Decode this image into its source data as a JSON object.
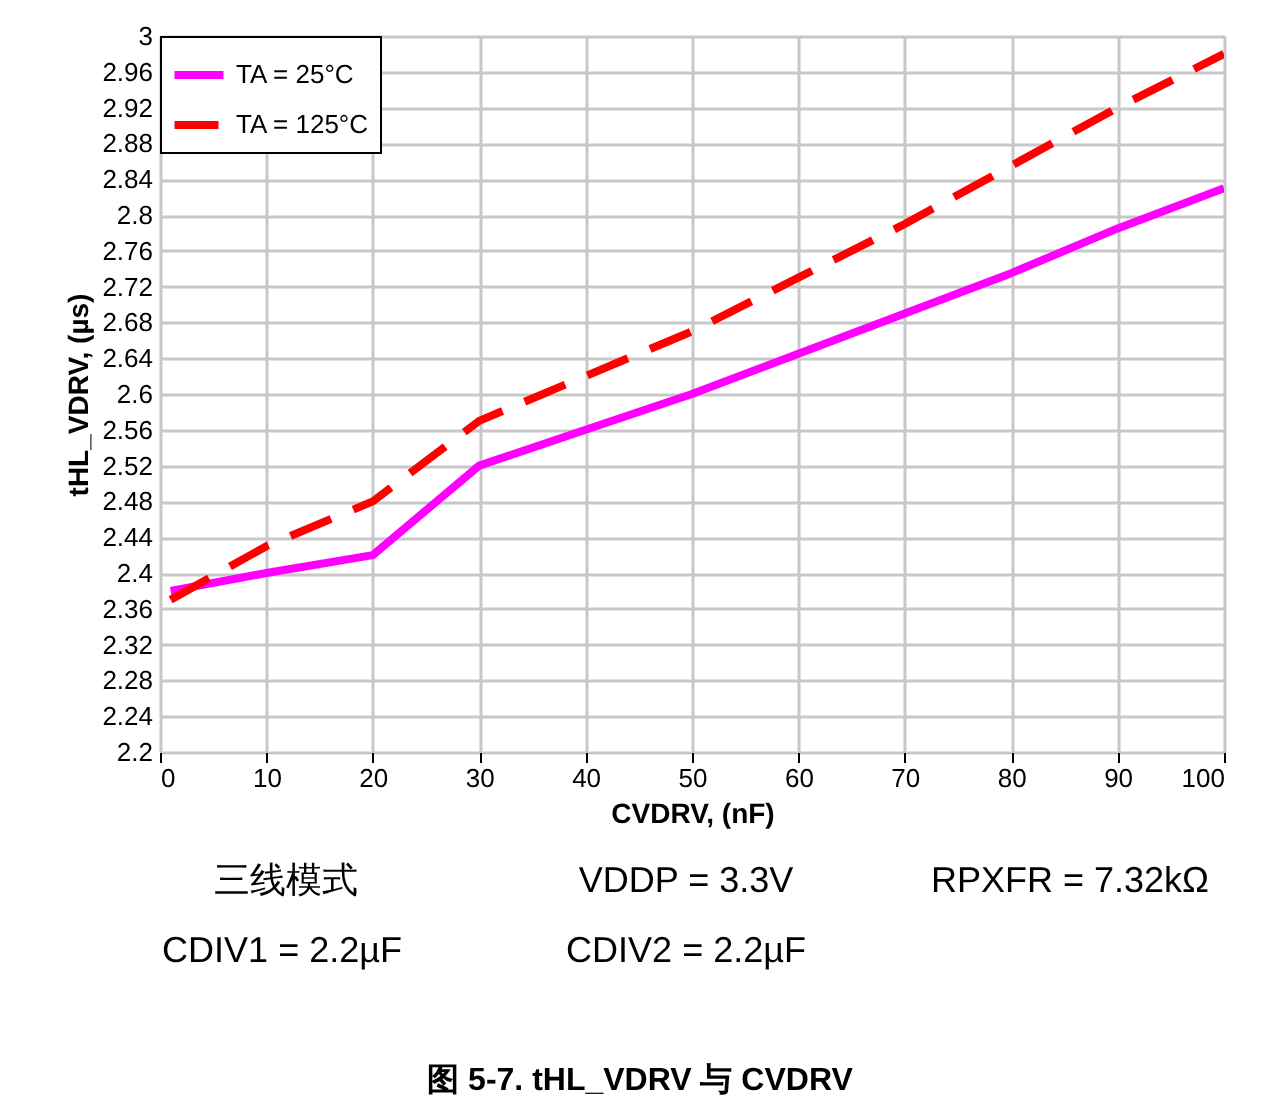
{
  "chart_data": {
    "type": "line",
    "title": "图 5-7. tHL_VDRV 与 CVDRV",
    "xlabel": "CVDRV, (nF)",
    "ylabel": "tHL_VDRV, (µs)",
    "x": [
      1,
      10,
      20,
      30,
      40,
      50,
      60,
      70,
      80,
      90,
      100
    ],
    "series": [
      {
        "name": "TA = 25°C",
        "color": "#ff00ff",
        "line_style": "solid",
        "values": [
          2.38,
          2.4,
          2.42,
          2.52,
          2.56,
          2.6,
          2.645,
          2.69,
          2.735,
          2.785,
          2.83
        ]
      },
      {
        "name": "TA = 125°C",
        "color": "#ff0000",
        "line_style": "dashed",
        "values": [
          2.37,
          2.43,
          2.48,
          2.57,
          2.62,
          2.67,
          2.73,
          2.79,
          2.855,
          2.92,
          2.98
        ]
      }
    ],
    "xlim": [
      0,
      100
    ],
    "xticks": [
      0,
      10,
      20,
      30,
      40,
      50,
      60,
      70,
      80,
      90,
      100
    ],
    "ylim": [
      2.2,
      3
    ],
    "yticks": [
      2.2,
      2.24,
      2.28,
      2.32,
      2.36,
      2.4,
      2.44,
      2.48,
      2.52,
      2.56,
      2.6,
      2.64,
      2.68,
      2.72,
      2.76,
      2.8,
      2.84,
      2.88,
      2.92,
      2.96,
      3
    ],
    "grid": true,
    "legend": "top left",
    "marker": "none",
    "annotations": [
      "三线模式",
      "VDDP = 3.3V",
      "RPXFR = 7.32kΩ",
      "CDIV1 = 2.2µF",
      "CDIV2 = 2.2µF"
    ]
  }
}
